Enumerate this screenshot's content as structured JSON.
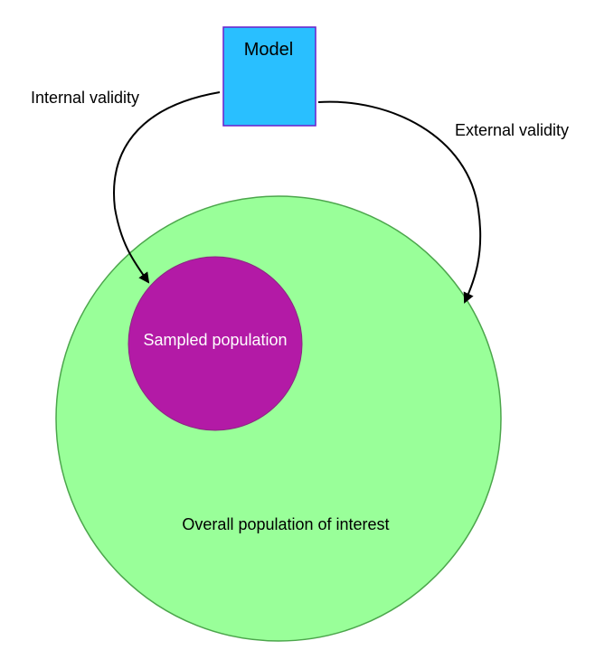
{
  "diagram": {
    "model": {
      "label": "Model",
      "fill_color": "#29BFFF",
      "stroke_color": "#6A1FCB"
    },
    "overall_population": {
      "label": "Overall population of interest",
      "fill_color": "#99FF99",
      "stroke_color": "#4CA64C"
    },
    "sampled_population": {
      "label": "Sampled population",
      "fill_color": "#B31AA6",
      "stroke_color": "#8A2A80",
      "text_color": "#FFFFFF"
    },
    "internal_validity": {
      "label": "Internal validity"
    },
    "external_validity": {
      "label": "External validity"
    }
  }
}
